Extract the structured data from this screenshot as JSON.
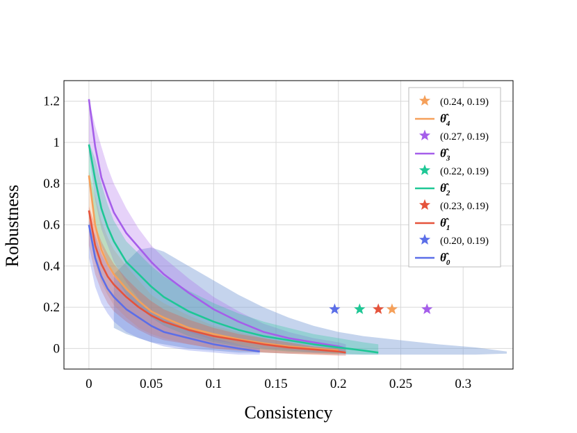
{
  "chart_data": {
    "type": "line",
    "title": "",
    "xlabel": "Consistency",
    "ylabel": "Robustness",
    "xlim": [
      -0.02,
      0.34
    ],
    "ylim": [
      -0.1,
      1.3
    ],
    "xticks": [
      0,
      0.05,
      0.1,
      0.15,
      0.2,
      0.25,
      0.3
    ],
    "xtick_labels": [
      "0",
      "0.05",
      "0.1",
      "0.15",
      "0.2",
      "0.25",
      "0.3"
    ],
    "yticks": [
      0,
      0.2,
      0.4,
      0.6,
      0.8,
      1.0,
      1.2
    ],
    "ytick_labels": [
      "0",
      "0.2",
      "0.4",
      "0.6",
      "0.8",
      "1",
      "1.2"
    ],
    "grid": true,
    "legend_position": "right",
    "series": [
      {
        "name": "θ̂4",
        "theta": "θ̂",
        "sub": "4",
        "color": "#f5a05a",
        "x": [
          0,
          0.005,
          0.01,
          0.015,
          0.02,
          0.03,
          0.04,
          0.05,
          0.06,
          0.08,
          0.1,
          0.12,
          0.14,
          0.16,
          0.18,
          0.2
        ],
        "y": [
          0.84,
          0.6,
          0.48,
          0.41,
          0.36,
          0.29,
          0.23,
          0.18,
          0.15,
          0.1,
          0.07,
          0.045,
          0.025,
          0.01,
          0.0,
          -0.01
        ],
        "band_upper": [
          0.86,
          0.74,
          0.62,
          0.54,
          0.48,
          0.4,
          0.33,
          0.26,
          0.22,
          0.16,
          0.11,
          0.08,
          0.05,
          0.03,
          0.01,
          0.0
        ],
        "band_lower": [
          0.6,
          0.42,
          0.32,
          0.26,
          0.21,
          0.15,
          0.1,
          0.07,
          0.05,
          0.02,
          0.0,
          -0.01,
          -0.02,
          -0.025,
          -0.03,
          -0.03
        ],
        "marker": {
          "x": 0.243,
          "y": 0.19,
          "label": "(0.24, 0.19)"
        }
      },
      {
        "name": "θ̂3",
        "theta": "θ̂",
        "sub": "3",
        "color": "#a55eea",
        "x": [
          0,
          0.005,
          0.01,
          0.015,
          0.02,
          0.03,
          0.04,
          0.05,
          0.06,
          0.08,
          0.1,
          0.12,
          0.14,
          0.16,
          0.18,
          0.2,
          0.206
        ],
        "y": [
          1.21,
          0.98,
          0.83,
          0.74,
          0.66,
          0.56,
          0.49,
          0.42,
          0.36,
          0.27,
          0.19,
          0.13,
          0.08,
          0.05,
          0.03,
          0.01,
          0.0
        ],
        "band_upper": [
          1.21,
          1.08,
          0.98,
          0.88,
          0.8,
          0.68,
          0.58,
          0.5,
          0.44,
          0.34,
          0.25,
          0.18,
          0.12,
          0.08,
          0.05,
          0.03,
          0.02
        ],
        "band_lower": [
          0.95,
          0.72,
          0.58,
          0.5,
          0.42,
          0.32,
          0.24,
          0.18,
          0.14,
          0.08,
          0.04,
          0.02,
          0.0,
          -0.01,
          -0.02,
          -0.02,
          -0.02
        ],
        "marker": {
          "x": 0.271,
          "y": 0.19,
          "label": "(0.27, 0.19)"
        }
      },
      {
        "name": "θ̂2",
        "theta": "θ̂",
        "sub": "2",
        "color": "#1ec795",
        "x": [
          0,
          0.005,
          0.01,
          0.015,
          0.02,
          0.03,
          0.04,
          0.05,
          0.06,
          0.08,
          0.1,
          0.12,
          0.14,
          0.16,
          0.18,
          0.2,
          0.22,
          0.232
        ],
        "y": [
          0.99,
          0.82,
          0.68,
          0.59,
          0.52,
          0.42,
          0.36,
          0.3,
          0.25,
          0.18,
          0.13,
          0.09,
          0.06,
          0.04,
          0.02,
          0.005,
          -0.01,
          -0.02
        ],
        "band_upper": [
          1.0,
          0.92,
          0.8,
          0.7,
          0.62,
          0.52,
          0.46,
          0.4,
          0.35,
          0.28,
          0.22,
          0.17,
          0.13,
          0.1,
          0.07,
          0.05,
          0.03,
          0.02
        ],
        "band_lower": [
          0.8,
          0.62,
          0.5,
          0.42,
          0.36,
          0.26,
          0.2,
          0.15,
          0.11,
          0.06,
          0.03,
          0.01,
          -0.005,
          -0.015,
          -0.02,
          -0.025,
          -0.03,
          -0.03
        ],
        "marker": {
          "x": 0.217,
          "y": 0.19,
          "label": "(0.22, 0.19)"
        }
      },
      {
        "name": "θ̂1",
        "theta": "θ̂",
        "sub": "1",
        "color": "#e5533b",
        "x": [
          0,
          0.005,
          0.01,
          0.015,
          0.02,
          0.03,
          0.04,
          0.05,
          0.06,
          0.08,
          0.1,
          0.12,
          0.14,
          0.16,
          0.18,
          0.2,
          0.206
        ],
        "y": [
          0.67,
          0.5,
          0.41,
          0.35,
          0.31,
          0.25,
          0.2,
          0.16,
          0.13,
          0.09,
          0.06,
          0.04,
          0.02,
          0.005,
          -0.005,
          -0.015,
          -0.02
        ],
        "band_upper": [
          0.69,
          0.6,
          0.52,
          0.46,
          0.41,
          0.34,
          0.28,
          0.23,
          0.19,
          0.14,
          0.1,
          0.07,
          0.05,
          0.03,
          0.01,
          0.0,
          -0.005
        ],
        "band_lower": [
          0.5,
          0.36,
          0.28,
          0.22,
          0.18,
          0.13,
          0.09,
          0.06,
          0.04,
          0.02,
          0.0,
          -0.01,
          -0.02,
          -0.025,
          -0.03,
          -0.035,
          -0.035
        ],
        "marker": {
          "x": 0.232,
          "y": 0.19,
          "label": "(0.23, 0.19)"
        }
      },
      {
        "name": "θ̂0",
        "theta": "θ̂",
        "sub": "0",
        "color": "#5b6ee8",
        "x": [
          0,
          0.005,
          0.01,
          0.015,
          0.02,
          0.03,
          0.04,
          0.05,
          0.06,
          0.08,
          0.1,
          0.12,
          0.137
        ],
        "y": [
          0.6,
          0.44,
          0.35,
          0.29,
          0.25,
          0.19,
          0.15,
          0.11,
          0.08,
          0.05,
          0.02,
          0.0,
          -0.015
        ],
        "band_upper": [
          0.62,
          0.55,
          0.46,
          0.4,
          0.35,
          0.28,
          0.23,
          0.18,
          0.14,
          0.09,
          0.05,
          0.02,
          0.0
        ],
        "band_lower": [
          0.44,
          0.3,
          0.22,
          0.17,
          0.13,
          0.08,
          0.05,
          0.03,
          0.01,
          -0.01,
          -0.02,
          -0.03,
          -0.03
        ],
        "marker": {
          "x": 0.197,
          "y": 0.19,
          "label": "(0.20, 0.19)"
        }
      }
    ],
    "background_band": {
      "name": "wide-blue-band",
      "color": "#7f9fd8",
      "x": [
        0.02,
        0.03,
        0.04,
        0.05,
        0.06,
        0.08,
        0.1,
        0.12,
        0.14,
        0.16,
        0.18,
        0.2,
        0.22,
        0.25,
        0.28,
        0.31,
        0.335
      ],
      "upper": [
        0.36,
        0.42,
        0.48,
        0.49,
        0.47,
        0.4,
        0.33,
        0.26,
        0.2,
        0.15,
        0.11,
        0.08,
        0.06,
        0.04,
        0.02,
        0.005,
        -0.015
      ],
      "lower": [
        0.1,
        0.07,
        0.05,
        0.03,
        0.02,
        0.0,
        -0.01,
        -0.02,
        -0.02,
        -0.025,
        -0.025,
        -0.03,
        -0.03,
        -0.03,
        -0.03,
        -0.03,
        -0.025
      ]
    },
    "legend": [
      {
        "type": "marker",
        "series": 0,
        "text": "(0.24, 0.19)"
      },
      {
        "type": "line",
        "series": 0
      },
      {
        "type": "marker",
        "series": 1,
        "text": "(0.27, 0.19)"
      },
      {
        "type": "line",
        "series": 1
      },
      {
        "type": "marker",
        "series": 2,
        "text": "(0.22, 0.19)"
      },
      {
        "type": "line",
        "series": 2
      },
      {
        "type": "marker",
        "series": 3,
        "text": "(0.23, 0.19)"
      },
      {
        "type": "line",
        "series": 3
      },
      {
        "type": "marker",
        "series": 4,
        "text": "(0.20, 0.19)"
      },
      {
        "type": "line",
        "series": 4
      }
    ]
  }
}
